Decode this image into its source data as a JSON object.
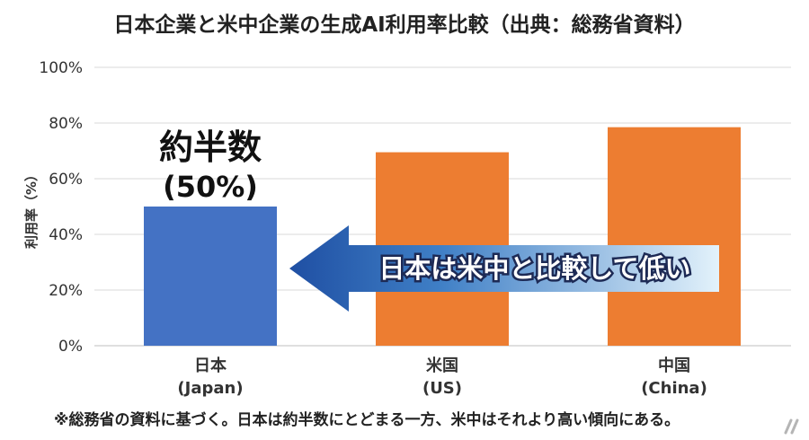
{
  "chart_data": {
    "type": "bar",
    "title": "日本企業と米中企業の生成AI利用率比較（出典：総務省資料）",
    "ylabel": "利用率（%）",
    "xlabel": "",
    "ylim": [
      0,
      100
    ],
    "yticks": [
      "0%",
      "20%",
      "40%",
      "60%",
      "80%",
      "100%"
    ],
    "ytick_values": [
      0,
      20,
      40,
      60,
      80,
      100
    ],
    "categories": [
      {
        "name": "日本",
        "sub": "(Japan)"
      },
      {
        "name": "米国",
        "sub": "(US)"
      },
      {
        "name": "中国",
        "sub": "(China)"
      }
    ],
    "values": [
      50,
      69.5,
      78.5
    ],
    "bar_colors": [
      "#4472c4",
      "#ed7d31",
      "#ed7d31"
    ],
    "grid": true,
    "annotations": {
      "japan_label": "約半数",
      "japan_value": "(50%)",
      "arrow_text": "日本は米中と比較して低い"
    }
  },
  "footnote": "※総務省の資料に基づく。日本は約半数にとどまる一方、米中はそれより高い傾向にある。",
  "colors": {
    "arrow_light": "#d6ecf7",
    "arrow_dark": "#1f4fa3",
    "grid": "#d9d9d9"
  },
  "icons": {
    "corner": "slash-logo-icon"
  }
}
